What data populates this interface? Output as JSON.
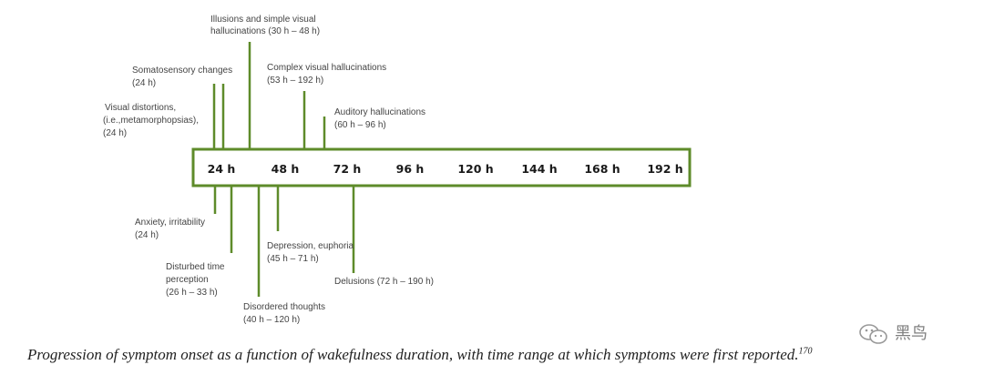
{
  "colors": {
    "line": "#5e8b2a",
    "text": "#444444"
  },
  "timeline": {
    "ticks": [
      "24 h",
      "48 h",
      "72 h",
      "96 h",
      "120 h",
      "144 h",
      "168 h",
      "192 h"
    ]
  },
  "labels_above": {
    "illusions": [
      "Illusions and simple visual",
      "hallucinations (30 h – 48 h)"
    ],
    "somatosensory": [
      "Somatosensory  changes",
      "(24 h)"
    ],
    "visual_distortions": [
      "Visual distortions,",
      "(i.e.,metamorphopsias),",
      "(24 h)"
    ],
    "complex_visual": [
      "Complex visual hallucinations",
      "(53 h – 192 h)"
    ],
    "auditory": [
      "Auditory hallucinations",
      "(60 h – 96 h)"
    ]
  },
  "labels_below": {
    "anxiety": [
      "Anxiety, irritability",
      "(24 h)"
    ],
    "disturbed_time": [
      "Disturbed time",
      "perception",
      "(26 h – 33 h)"
    ],
    "disordered_thoughts": [
      "Disordered thoughts",
      "(40 h – 120 h)"
    ],
    "depression": [
      "Depression, euphoria",
      "(45 h – 71 h)"
    ],
    "delusions": [
      "Delusions  (72 h – 190 h)"
    ]
  },
  "caption": {
    "text": "Progression of symptom onset as a function of wakefulness duration, with time range at which symptoms were first reported.",
    "ref": "170"
  },
  "watermark": {
    "text": "黑鸟",
    "icon": "wechat-icon"
  }
}
